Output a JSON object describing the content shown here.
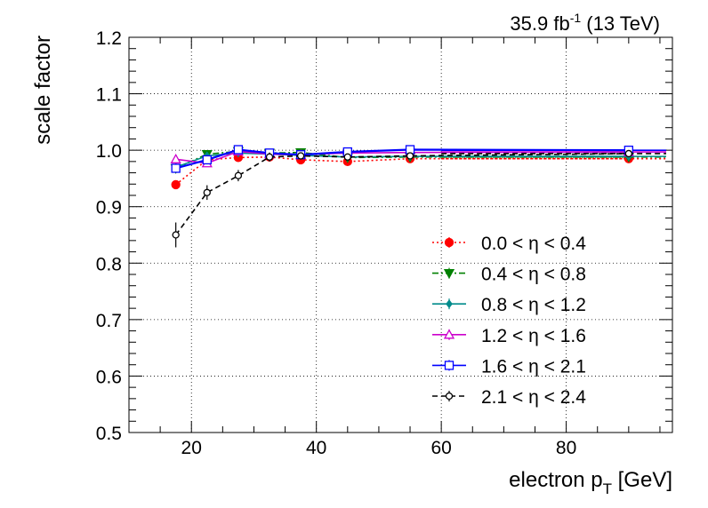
{
  "chart_data": {
    "type": "line",
    "lumi_label": "35.9 fb",
    "lumi_sup": "-1",
    "lumi_tail": " (13 TeV)",
    "ylabel": "scale factor",
    "xlabel": "electron p",
    "xlabel_sub": "T",
    "xlabel_tail": " [GeV]",
    "xlim": [
      10,
      97
    ],
    "ylim": [
      0.5,
      1.2
    ],
    "xticks": [
      20,
      40,
      60,
      80
    ],
    "yticks": [
      0.5,
      0.6,
      0.7,
      0.8,
      0.9,
      1.0,
      1.1,
      1.2
    ],
    "ytick_labels": [
      "0.5",
      "0.6",
      "0.7",
      "0.8",
      "0.9",
      "1.0",
      "1.1",
      "1.2"
    ],
    "grid": true,
    "legend_position": "bottom-right",
    "x_bins": [
      [
        15,
        20
      ],
      [
        20,
        25
      ],
      [
        25,
        30
      ],
      [
        30,
        35
      ],
      [
        35,
        40
      ],
      [
        40,
        50
      ],
      [
        50,
        60
      ],
      [
        60,
        120
      ]
    ],
    "x": [
      17.5,
      22.5,
      27.5,
      32.5,
      37.5,
      45,
      55,
      90
    ],
    "series": [
      {
        "name": "0.0 <  η < 0.4",
        "color": "#ff0000",
        "marker": "circle",
        "line_style": "dotted",
        "values": [
          0.939,
          0.983,
          0.987,
          0.988,
          0.983,
          0.98,
          0.985,
          0.985
        ],
        "errors": [
          0.005,
          0.004,
          0.003,
          0.003,
          0.003,
          0.002,
          0.002,
          0.002
        ]
      },
      {
        "name": "0.4 <  η < 0.8",
        "color": "#008000",
        "marker": "triangle-down",
        "line_style": "dashdot",
        "values": [
          0.968,
          0.993,
          0.998,
          0.995,
          0.996,
          0.987,
          0.988,
          0.988
        ],
        "errors": [
          0.006,
          0.004,
          0.003,
          0.003,
          0.003,
          0.002,
          0.002,
          0.002
        ]
      },
      {
        "name": "0.8 <  η < 1.2",
        "color": "#008b8b",
        "marker": "diamond",
        "line_style": "solid",
        "values": [
          0.97,
          0.99,
          0.995,
          0.993,
          0.991,
          0.988,
          0.989,
          0.989
        ],
        "errors": [
          0.006,
          0.004,
          0.003,
          0.003,
          0.003,
          0.002,
          0.002,
          0.002
        ]
      },
      {
        "name": "1.2 <  η < 1.6",
        "color": "#cc00cc",
        "marker": "triangle-up-open",
        "line_style": "solid",
        "values": [
          0.984,
          0.977,
          0.998,
          0.993,
          0.992,
          0.995,
          0.996,
          0.997
        ],
        "errors": [
          0.008,
          0.006,
          0.004,
          0.004,
          0.003,
          0.003,
          0.003,
          0.003
        ]
      },
      {
        "name": "1.6 <  η < 2.1",
        "color": "#0000ff",
        "marker": "square-open",
        "line_style": "solid",
        "values": [
          0.968,
          0.983,
          1.001,
          0.995,
          0.992,
          0.997,
          1.001,
          1.0
        ],
        "errors": [
          0.007,
          0.005,
          0.004,
          0.004,
          0.003,
          0.003,
          0.003,
          0.003
        ]
      },
      {
        "name": "2.1 <  η < 2.4",
        "color": "#000000",
        "marker": "circle-open",
        "line_style": "dashed",
        "values": [
          0.85,
          0.925,
          0.955,
          0.988,
          0.99,
          0.988,
          0.99,
          0.994
        ],
        "errors": [
          0.022,
          0.013,
          0.01,
          0.008,
          0.005,
          0.004,
          0.004,
          0.004
        ]
      }
    ]
  }
}
